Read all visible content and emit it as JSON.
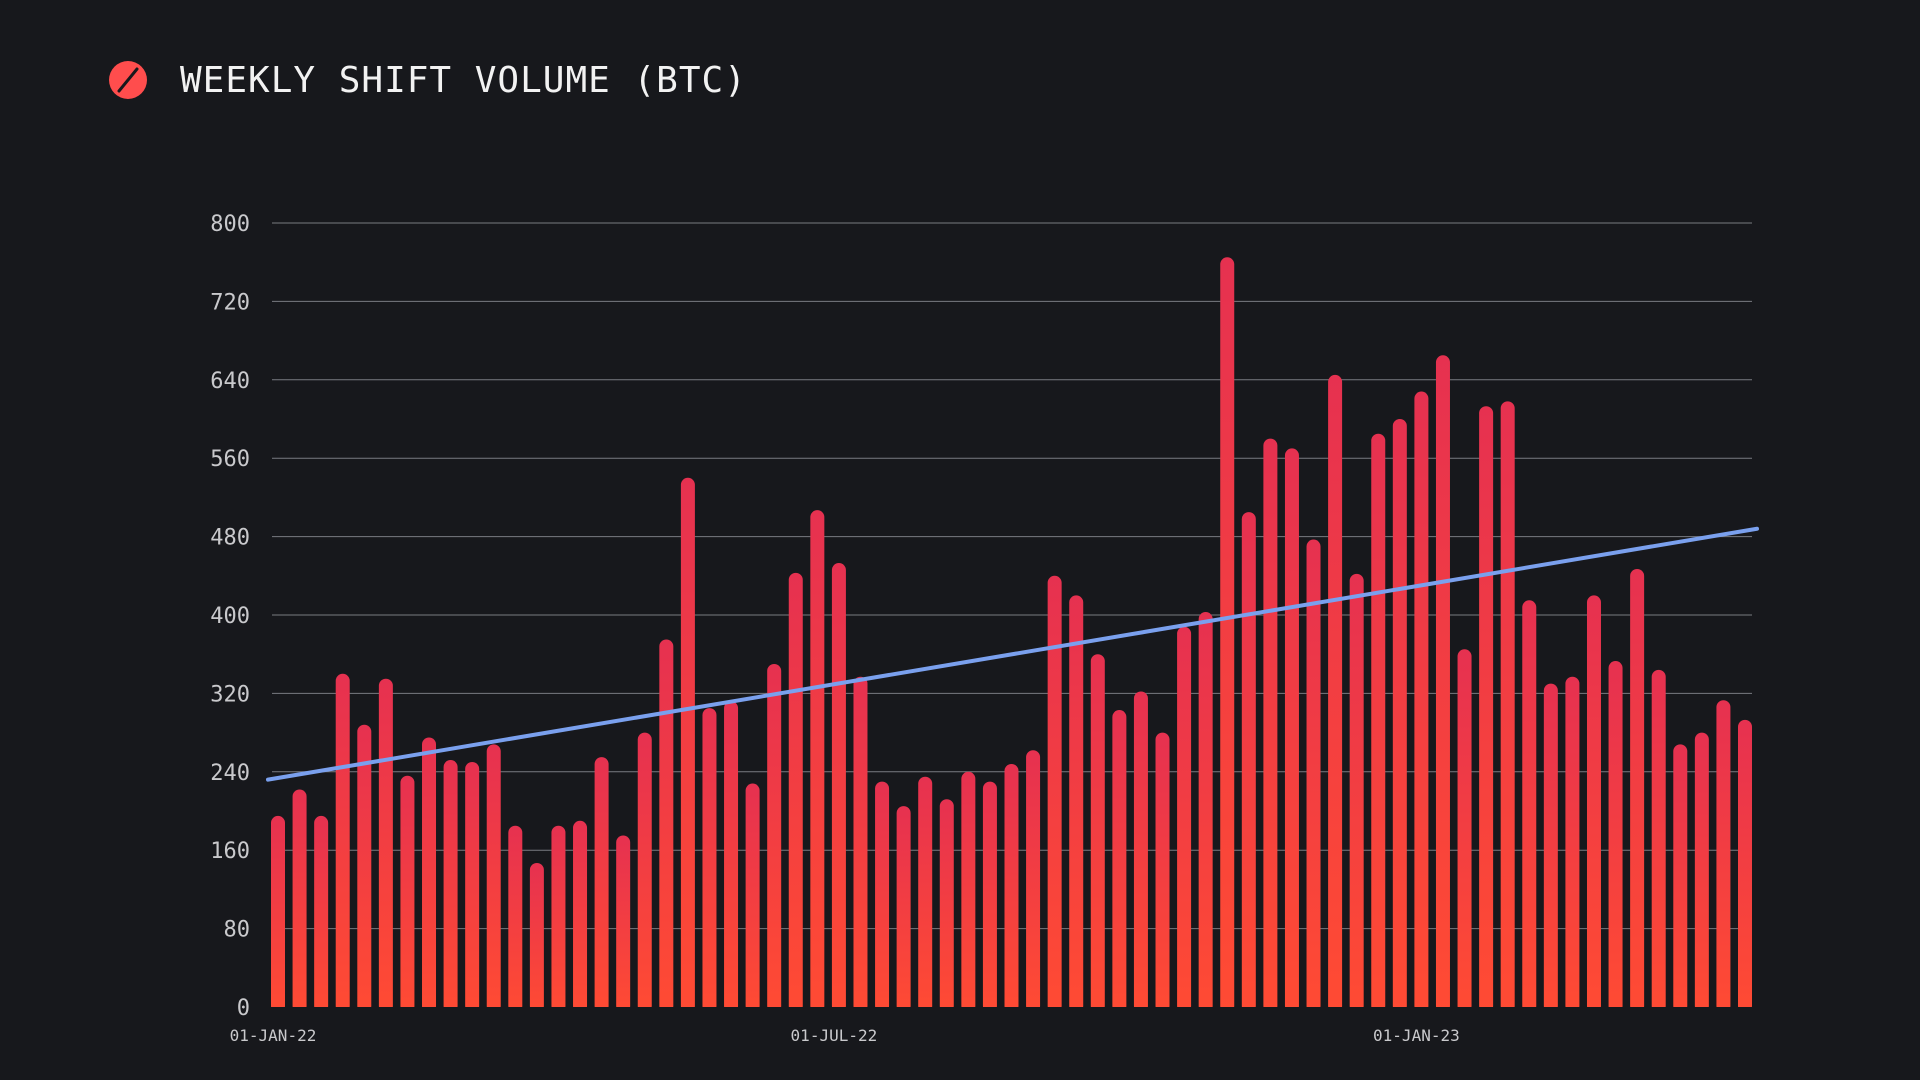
{
  "header": {
    "title": "WEEKLY SHIFT VOLUME (BTC)",
    "logo_icon": "slashed-circle-logo",
    "logo_color": "#ff4d4d"
  },
  "colors": {
    "background": "#17181c",
    "bar_top": "#e63150",
    "bar_bottom": "#ff4b33",
    "trend_line": "#7aa0ee",
    "grid": "#9a9ca3",
    "text": "#c9c9cc"
  },
  "chart_data": {
    "type": "bar",
    "title": "WEEKLY SHIFT VOLUME (BTC)",
    "xlabel": "",
    "ylabel": "",
    "ylim": [
      0,
      800
    ],
    "yticks": [
      0,
      80,
      160,
      240,
      320,
      400,
      480,
      560,
      640,
      720,
      800
    ],
    "xtick_labels": [
      "01-JAN-22",
      "01-JUL-22",
      "01-JAN-23"
    ],
    "xtick_bar_index": [
      0,
      26,
      53
    ],
    "grid": true,
    "legend": "none",
    "series": [
      {
        "values": [
          195,
          222,
          195,
          340,
          288,
          335,
          236,
          275,
          252,
          250,
          268,
          185,
          147,
          185,
          190,
          255,
          175,
          280,
          375,
          540,
          305,
          312,
          228,
          350,
          443,
          507,
          453,
          337,
          230,
          205,
          235,
          212,
          240,
          230,
          248,
          262,
          440,
          420,
          360,
          303,
          322,
          280,
          388,
          403,
          765,
          505,
          580,
          570,
          477,
          645,
          442,
          585,
          600,
          628,
          665,
          365,
          613,
          618,
          415,
          330,
          337,
          420,
          353,
          447,
          344,
          268,
          280,
          313,
          293
        ]
      },
      {
        "type": "line",
        "values_start_end": [
          232,
          488
        ]
      }
    ]
  }
}
